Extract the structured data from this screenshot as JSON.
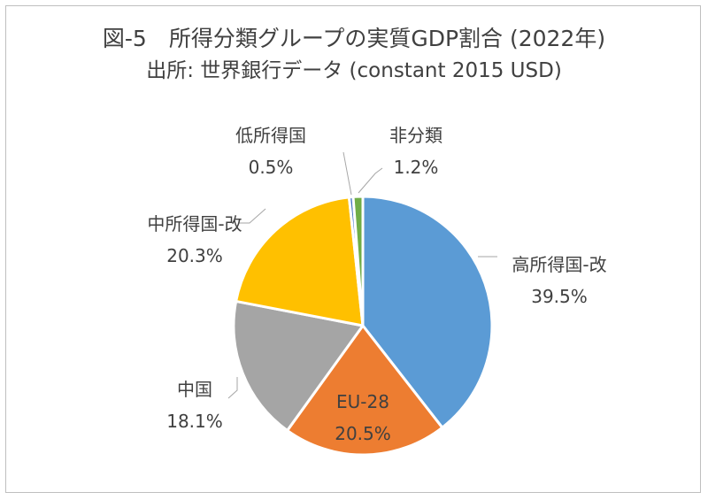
{
  "chart_data": {
    "type": "pie",
    "title": "図-5　所得分類グループの実質GDP割合 (2022年)",
    "subtitle": "出所: 世界銀行データ (constant 2015 USD)",
    "slices": [
      {
        "label": "高所得国-改",
        "value": 39.5,
        "value_text": "39.5%",
        "color": "#5b9bd5"
      },
      {
        "label": "EU-28",
        "value": 20.5,
        "value_text": "20.5%",
        "color": "#ed7d31"
      },
      {
        "label": "中国",
        "value": 18.1,
        "value_text": "18.1%",
        "color": "#a5a5a5"
      },
      {
        "label": "中所得国-改",
        "value": 20.3,
        "value_text": "20.3%",
        "color": "#ffc000"
      },
      {
        "label": "低所得国",
        "value": 0.5,
        "value_text": "0.5%",
        "color": "#4472c4"
      },
      {
        "label": "非分類",
        "value": 1.2,
        "value_text": "1.2%",
        "color": "#70ad47"
      }
    ]
  }
}
